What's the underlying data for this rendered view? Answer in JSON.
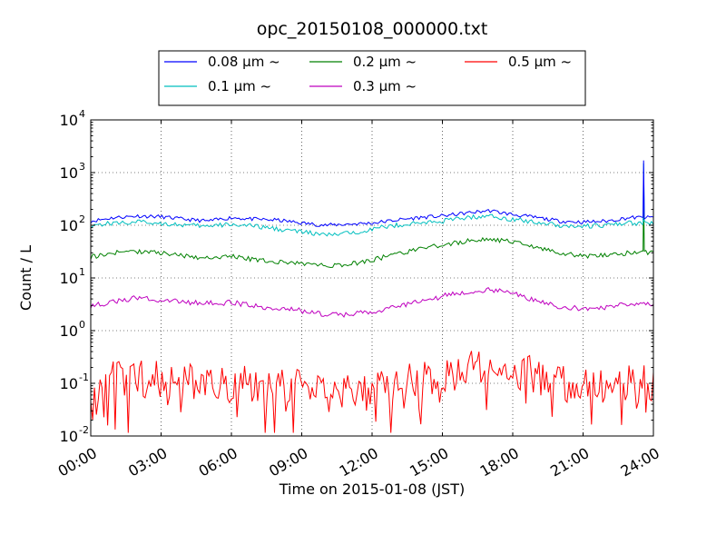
{
  "chart_data": {
    "type": "line",
    "title": "opc_20150108_000000.txt",
    "xlabel": "Time on 2015-01-08 (JST)",
    "ylabel": "Count / L",
    "yscale": "log",
    "xlim": [
      "00:00",
      "24:00"
    ],
    "ylim": [
      0.01,
      10000
    ],
    "grid": true,
    "legend_position": "top-center",
    "xticks": [
      "00:00",
      "03:00",
      "06:00",
      "09:00",
      "12:00",
      "15:00",
      "18:00",
      "21:00",
      "24:00"
    ],
    "yticks": [
      {
        "base": "10",
        "exp": "-2"
      },
      {
        "base": "10",
        "exp": "-1"
      },
      {
        "base": "10",
        "exp": "0"
      },
      {
        "base": "10",
        "exp": "1"
      },
      {
        "base": "10",
        "exp": "2"
      },
      {
        "base": "10",
        "exp": "3"
      },
      {
        "base": "10",
        "exp": "4"
      }
    ],
    "x": [
      "00:00",
      "01:00",
      "02:00",
      "03:00",
      "04:00",
      "05:00",
      "06:00",
      "07:00",
      "08:00",
      "09:00",
      "10:00",
      "11:00",
      "12:00",
      "13:00",
      "14:00",
      "15:00",
      "16:00",
      "17:00",
      "18:00",
      "19:00",
      "20:00",
      "21:00",
      "22:00",
      "23:00",
      "24:00"
    ],
    "spike": {
      "time": "23:35",
      "values": {
        "0.08 µm ~": 1700,
        "0.1 µm ~": 1500,
        "0.2 µm ~": 420
      }
    },
    "series": [
      {
        "name": "0.08 µm ~",
        "color": "#0000ff",
        "values": [
          120,
          140,
          150,
          145,
          130,
          120,
          140,
          130,
          125,
          110,
          100,
          105,
          110,
          125,
          140,
          150,
          170,
          190,
          160,
          140,
          120,
          115,
          120,
          140,
          140
        ]
      },
      {
        "name": "0.1 µm ~",
        "color": "#00bfbf",
        "values": [
          100,
          110,
          115,
          110,
          100,
          95,
          105,
          95,
          85,
          75,
          65,
          70,
          85,
          100,
          110,
          120,
          140,
          150,
          130,
          115,
          100,
          95,
          100,
          110,
          110
        ]
      },
      {
        "name": "0.2 µm ~",
        "color": "#008000",
        "values": [
          25,
          30,
          32,
          30,
          26,
          24,
          26,
          22,
          20,
          19,
          17,
          18,
          22,
          28,
          35,
          42,
          50,
          55,
          48,
          38,
          30,
          26,
          27,
          30,
          30
        ]
      },
      {
        "name": "0.3 µm ~",
        "color": "#bf00bf",
        "values": [
          3,
          3.5,
          4.2,
          3.8,
          3.5,
          3.3,
          3.4,
          3,
          2.6,
          2.4,
          2,
          2,
          2.3,
          2.8,
          3.5,
          4.5,
          5.5,
          6,
          5,
          3.8,
          2.8,
          2.6,
          2.8,
          3.2,
          3.3
        ]
      },
      {
        "name": "0.5 µm ~",
        "color": "#ff0000",
        "values": [
          0.1,
          0.12,
          0.13,
          0.12,
          0.11,
          0.1,
          0.1,
          0.1,
          0.09,
          0.08,
          0.07,
          0.07,
          0.08,
          0.1,
          0.12,
          0.15,
          0.2,
          0.22,
          0.18,
          0.14,
          0.1,
          0.09,
          0.09,
          0.1,
          0.1
        ]
      }
    ]
  }
}
